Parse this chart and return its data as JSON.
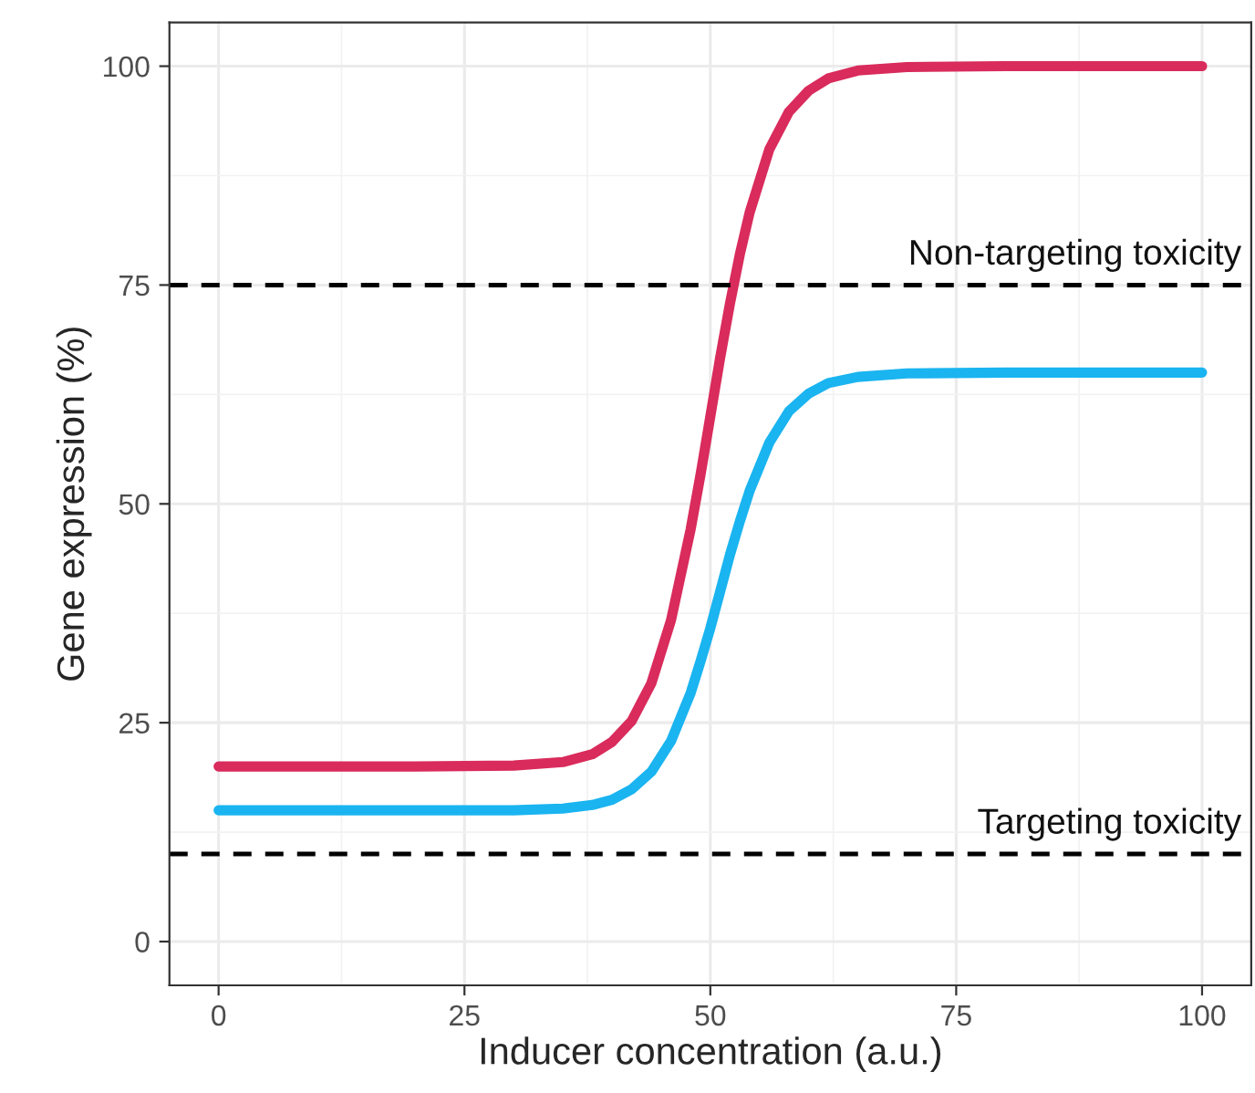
{
  "chart_data": {
    "type": "line",
    "xlabel": "Inducer concentration (a.u.)",
    "ylabel": "Gene expression (%)",
    "x": [
      0,
      10,
      20,
      30,
      35,
      38,
      40,
      42,
      44,
      46,
      48,
      49,
      50,
      51,
      52,
      53,
      54,
      56,
      58,
      60,
      62,
      65,
      70,
      80,
      90,
      100
    ],
    "series": [
      {
        "color": "#d92b5c",
        "values": [
          20,
          20,
          20,
          20.1,
          20.5,
          21.4,
          22.8,
          25.2,
          29.5,
          36.7,
          47.1,
          53.3,
          60,
          66.7,
          72.9,
          78.5,
          83.3,
          90.5,
          94.8,
          97.2,
          98.6,
          99.5,
          99.9,
          100,
          100,
          100
        ]
      },
      {
        "color": "#1ab4f0",
        "values": [
          15,
          15,
          15,
          15,
          15.2,
          15.6,
          16.2,
          17.4,
          19.4,
          22.9,
          28.4,
          32.0,
          35.8,
          40,
          44.2,
          48.0,
          51.5,
          57.0,
          60.6,
          62.6,
          63.8,
          64.5,
          64.9,
          65,
          65,
          65
        ]
      }
    ],
    "xlim": [
      -5,
      105
    ],
    "ylim": [
      -5,
      105
    ],
    "xticks": [
      0,
      25,
      50,
      75,
      100
    ],
    "yticks": [
      0,
      25,
      50,
      75,
      100
    ],
    "grid": true,
    "line_style": "solid",
    "marker": "none",
    "ref_lines": [
      {
        "axis": "y",
        "value": 75,
        "label": "Non-targeting toxicity",
        "color": "#000000",
        "line_style": "dashed"
      },
      {
        "axis": "y",
        "value": 10,
        "label": "Targeting toxicity",
        "color": "#000000",
        "line_style": "dashed"
      }
    ]
  }
}
